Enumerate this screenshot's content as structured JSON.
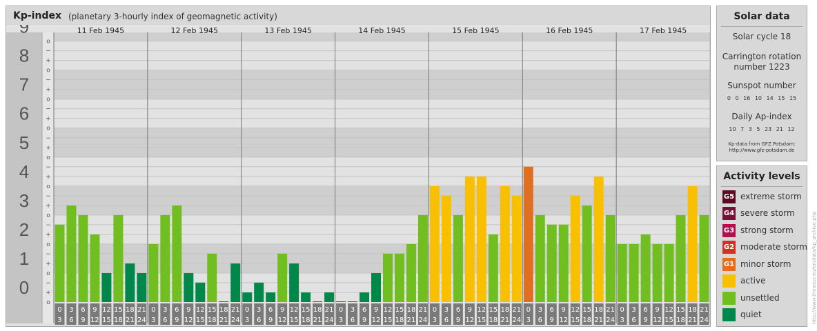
{
  "header": {
    "title": "Kp-index",
    "subtitle": "(planetary 3-hourly index of geomagnetic activity)"
  },
  "chart_data": {
    "type": "bar",
    "y_axis": {
      "ylim": [
        0,
        9
      ],
      "tick_labels": [
        "0",
        "1",
        "2",
        "3",
        "4",
        "5",
        "6",
        "7",
        "8",
        "9"
      ],
      "minor_labels": [
        "o",
        "+",
        "−",
        "o",
        "+",
        "−",
        "o",
        "+",
        "−",
        "o",
        "+",
        "−",
        "o",
        "+",
        "−",
        "o",
        "+",
        "−",
        "o",
        "+",
        "−",
        "o",
        "+",
        "−",
        "o",
        "+",
        "−",
        "o"
      ]
    },
    "days": [
      "11 Feb 1945",
      "12 Feb 1945",
      "13 Feb 1945",
      "14 Feb 1945",
      "15 Feb 1945",
      "16 Feb 1945",
      "17 Feb 1945"
    ],
    "interval_labels": [
      [
        "0",
        "3"
      ],
      [
        "3",
        "6"
      ],
      [
        "6",
        "9"
      ],
      [
        "9",
        "12"
      ],
      [
        "12",
        "15"
      ],
      [
        "15",
        "18"
      ],
      [
        "18",
        "21"
      ],
      [
        "21",
        "24"
      ]
    ],
    "values": [
      [
        2.67,
        3.33,
        3.0,
        2.33,
        1.0,
        3.0,
        1.33,
        1.0
      ],
      [
        2.0,
        3.0,
        3.33,
        1.0,
        0.67,
        1.67,
        0.0,
        1.33
      ],
      [
        0.33,
        0.67,
        0.33,
        1.67,
        1.33,
        0.33,
        0.0,
        0.33
      ],
      [
        0.0,
        0.0,
        0.33,
        1.0,
        1.67,
        1.67,
        2.0,
        3.0
      ],
      [
        4.0,
        3.67,
        3.0,
        4.33,
        4.33,
        2.33,
        4.0,
        3.67
      ],
      [
        4.67,
        3.0,
        2.67,
        2.67,
        3.67,
        3.33,
        4.33,
        3.0
      ],
      [
        2.0,
        2.0,
        2.33,
        2.0,
        2.0,
        3.0,
        4.0,
        3.0
      ]
    ]
  },
  "solar": {
    "title": "Solar data",
    "cycle": "Solar cycle 18",
    "carrington_line1": "Carrington rotation",
    "carrington_line2": "number 1223",
    "sunspot_title": "Sunspot number",
    "sunspot_values": "0 0 16 10 14 15 15",
    "ap_title": "Daily Ap-index",
    "ap_values": "10 7 3 5 23 21 12",
    "source_line1": "Kp-data from GFZ Potsdam:",
    "source_line2": "http://www.gfz-potsdam.de"
  },
  "levels": {
    "title": "Activity levels",
    "items": [
      {
        "code": "G5",
        "label": "extreme storm",
        "color": "#5c0a22"
      },
      {
        "code": "G4",
        "label": "severe storm",
        "color": "#7a1038"
      },
      {
        "code": "G3",
        "label": "strong storm",
        "color": "#b01050"
      },
      {
        "code": "G2",
        "label": "moderate storm",
        "color": "#d83020"
      },
      {
        "code": "G1",
        "label": "minor storm",
        "color": "#e07020"
      },
      {
        "code": "",
        "label": "active",
        "color": "#f8c000"
      },
      {
        "code": "",
        "label": "unsettled",
        "color": "#70be20"
      },
      {
        "code": "",
        "label": "quiet",
        "color": "#00884a"
      }
    ]
  },
  "colors": {
    "quiet": "#00884a",
    "unsettled": "#70be20",
    "active": "#f8c000",
    "minor_storm": "#e07020"
  },
  "watermark": "http://www.theseus.eu/en/data/kp_archive.php"
}
